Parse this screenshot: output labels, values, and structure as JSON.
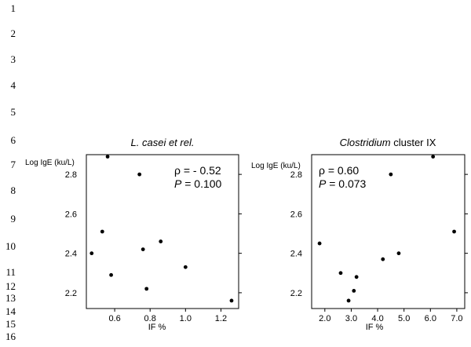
{
  "line_numbers": [
    "1",
    "2",
    "3",
    "4",
    "5",
    "6",
    "7",
    "8",
    "9",
    "10",
    "11",
    "12",
    "13",
    "14",
    "15",
    "16"
  ],
  "chart_data": [
    {
      "type": "scatter",
      "title_italic": "L. casei et rel.",
      "title_rest": "",
      "ylabel": "Log IgE (ku/L)",
      "xlabel": "IF %",
      "xlim": [
        0.44,
        1.3
      ],
      "ylim": [
        2.12,
        2.9
      ],
      "x_ticks": [
        "0.6",
        "0.8",
        "1.0",
        "1.2"
      ],
      "y_ticks": [
        "2.2",
        "2.4",
        "2.6",
        "2.8"
      ],
      "stat_rho": "ρ = - 0.52",
      "stat_p_label": "P",
      "stat_p_value": " = 0.100",
      "points": [
        {
          "x": 0.47,
          "y": 2.4
        },
        {
          "x": 0.53,
          "y": 2.51
        },
        {
          "x": 0.56,
          "y": 2.89
        },
        {
          "x": 0.58,
          "y": 2.29
        },
        {
          "x": 0.74,
          "y": 2.8
        },
        {
          "x": 0.76,
          "y": 2.42
        },
        {
          "x": 0.78,
          "y": 2.22
        },
        {
          "x": 0.86,
          "y": 2.46
        },
        {
          "x": 1.0,
          "y": 2.33
        },
        {
          "x": 1.26,
          "y": 2.16
        }
      ]
    },
    {
      "type": "scatter",
      "title_italic": "Clostridium",
      "title_rest": " cluster IX",
      "ylabel": "Log IgE (ku/L)",
      "xlabel": "IF %",
      "xlim": [
        1.5,
        7.3
      ],
      "ylim": [
        2.12,
        2.9
      ],
      "x_ticks": [
        "2.0",
        "3.0",
        "4.0",
        "5.0",
        "6.0",
        "7.0"
      ],
      "y_ticks": [
        "2.2",
        "2.4",
        "2.6",
        "2.8"
      ],
      "stat_rho": "ρ = 0.60",
      "stat_p_label": "P",
      "stat_p_value": " = 0.073",
      "points": [
        {
          "x": 1.8,
          "y": 2.45
        },
        {
          "x": 2.6,
          "y": 2.3
        },
        {
          "x": 2.9,
          "y": 2.16
        },
        {
          "x": 3.1,
          "y": 2.21
        },
        {
          "x": 3.2,
          "y": 2.28
        },
        {
          "x": 4.2,
          "y": 2.37
        },
        {
          "x": 4.5,
          "y": 2.8
        },
        {
          "x": 4.8,
          "y": 2.4
        },
        {
          "x": 6.1,
          "y": 2.89
        },
        {
          "x": 6.9,
          "y": 2.51
        }
      ]
    }
  ]
}
